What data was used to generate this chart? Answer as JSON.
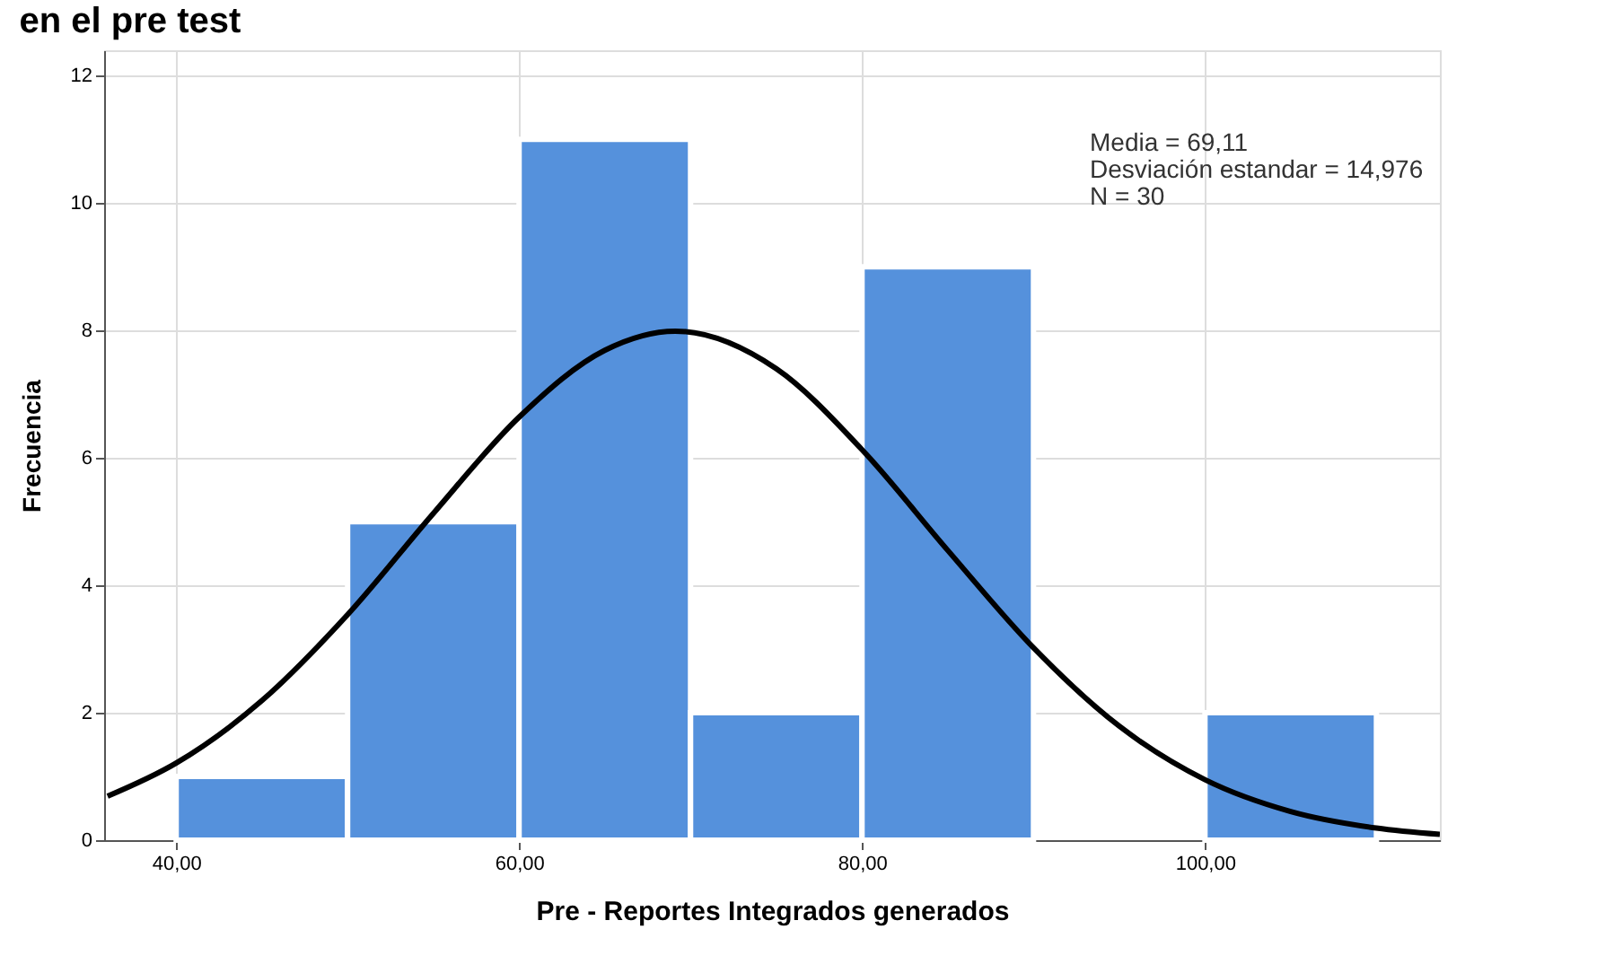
{
  "chart_data": {
    "type": "histogram",
    "title": "en el pre test",
    "xlabel": "Pre - Reportes Integrados generados",
    "ylabel": "Frecuencia",
    "bins": [
      40,
      50,
      60,
      70,
      80,
      90,
      100,
      110
    ],
    "values": [
      1,
      5,
      11,
      2,
      9,
      0,
      2
    ],
    "color": "#5591dc",
    "series": [
      {
        "type": "line",
        "color": "#000000",
        "x": [
          36,
          40,
          45,
          50,
          55,
          60,
          65,
          69.11,
          75,
          80,
          85,
          90,
          95,
          100,
          105,
          110,
          113.7
        ],
        "values": [
          0.69,
          1.21,
          2.19,
          3.54,
          5.13,
          6.64,
          7.69,
          7.99,
          7.4,
          6.13,
          4.55,
          3.02,
          1.79,
          0.95,
          0.45,
          0.19,
          0.09
        ]
      }
    ],
    "xlim": [
      35.8,
      113.7
    ],
    "xticks": [
      {
        "value": 40,
        "label": "40,00"
      },
      {
        "value": 60,
        "label": "60,00"
      },
      {
        "value": 80,
        "label": "80,00"
      },
      {
        "value": 100,
        "label": "100,00"
      }
    ],
    "ylim": [
      0,
      12.4
    ],
    "yticks": [
      0,
      2,
      4,
      6,
      8,
      10,
      12
    ],
    "grid": true,
    "annotations": [
      "Media = 69,11",
      "Desviación estandar = 14,976",
      "N = 30"
    ]
  }
}
